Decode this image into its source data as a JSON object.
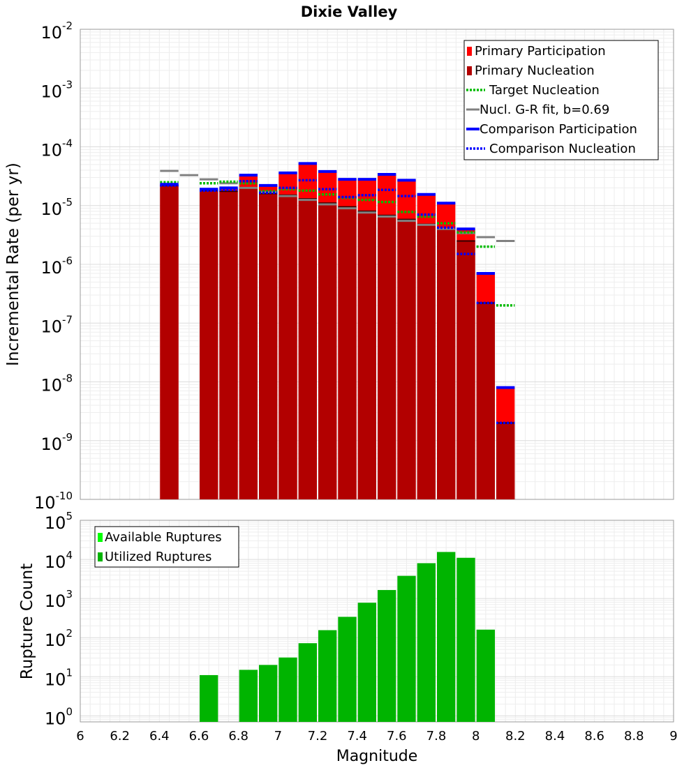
{
  "chart_data": [
    {
      "type": "bar",
      "title": "Dixie Valley",
      "xlabel": "",
      "ylabel": "Incremental Rate (per yr)",
      "yscale": "log",
      "xlim": [
        6,
        9
      ],
      "ylim": [
        1e-10,
        0.01
      ],
      "y_tick_labels": [
        {
          "base": "10",
          "exp": "-10",
          "value": 1e-10
        },
        {
          "base": "10",
          "exp": "-9",
          "value": 1e-09
        },
        {
          "base": "10",
          "exp": "-8",
          "value": 1e-08
        },
        {
          "base": "10",
          "exp": "-7",
          "value": 1e-07
        },
        {
          "base": "10",
          "exp": "-6",
          "value": 1e-06
        },
        {
          "base": "10",
          "exp": "-5",
          "value": 1e-05
        },
        {
          "base": "10",
          "exp": "-4",
          "value": 0.0001
        },
        {
          "base": "10",
          "exp": "-3",
          "value": 0.001
        },
        {
          "base": "10",
          "exp": "-2",
          "value": 0.01
        }
      ],
      "grid": true,
      "legend_position": "top-right",
      "legend": [
        "Primary Participation",
        "Primary Nucleation",
        "Target Nucleation",
        "Nucl. G-R fit, b=0.69",
        "Comparison Participation",
        "Comparison Nucleation"
      ],
      "colors": {
        "primary_participation": "#ff0000",
        "primary_nucleation": "#b20000",
        "target_nucleation": "#00bb00",
        "gr_fit": "#808080",
        "comparison_participation": "#0000ff",
        "comparison_nucleation": "#0000ff",
        "nucleation_marker": "#330000"
      },
      "bin_width": 0.1,
      "series": [
        {
          "name": "Primary Participation",
          "x": [
            6.45,
            6.65,
            6.75,
            6.85,
            6.95,
            7.05,
            7.15,
            7.25,
            7.35,
            7.45,
            7.55,
            7.65,
            7.75,
            7.85,
            7.95,
            8.05,
            8.15
          ],
          "values": [
            2.3e-05,
            1.9e-05,
            2e-05,
            3.3e-05,
            2.2e-05,
            3.6e-05,
            5.2e-05,
            3.8e-05,
            2.8e-05,
            2.8e-05,
            3.4e-05,
            2.7e-05,
            1.55e-05,
            1.1e-05,
            4e-06,
            7e-07,
            8e-09
          ]
        },
        {
          "name": "Primary Nucleation",
          "x": [
            6.45,
            6.65,
            6.75,
            6.85,
            6.95,
            7.05,
            7.15,
            7.25,
            7.35,
            7.45,
            7.55,
            7.65,
            7.75,
            7.85,
            7.95,
            8.05,
            8.15
          ],
          "values": [
            2.2e-05,
            1.8e-05,
            1.75e-05,
            2e-05,
            1.6e-05,
            1.5e-05,
            1.3e-05,
            1.1e-05,
            9.5e-06,
            8e-06,
            6.8e-06,
            5.8e-06,
            4.8e-06,
            4e-06,
            2.5e-06,
            2.2e-07,
            2e-09
          ]
        },
        {
          "name": "Target Nucleation",
          "x": [
            6.45,
            6.65,
            6.75,
            6.85,
            6.95,
            7.05,
            7.15,
            7.25,
            7.35,
            7.45,
            7.55,
            7.65,
            7.75,
            7.85,
            7.95,
            8.05,
            8.15
          ],
          "values": [
            2.5e-05,
            2.4e-05,
            2.55e-05,
            2.4e-05,
            1.75e-05,
            1.9e-05,
            1.8e-05,
            1.55e-05,
            1.35e-05,
            1.25e-05,
            1.15e-05,
            7.8e-06,
            6.5e-06,
            5e-06,
            3.5e-06,
            2e-06,
            2e-07
          ]
        },
        {
          "name": "Nucl. G-R fit, b=0.69",
          "x": [
            6.45,
            6.55,
            6.65,
            6.75,
            6.85,
            6.95,
            7.05,
            7.15,
            7.25,
            7.35,
            7.45,
            7.55,
            7.65,
            7.75,
            7.85,
            7.95,
            8.05,
            8.15
          ],
          "values": [
            3.9e-05,
            3.3e-05,
            2.8e-05,
            2.4e-05,
            2e-05,
            1.7e-05,
            1.45e-05,
            1.25e-05,
            1.05e-05,
            9e-06,
            7.6e-06,
            6.5e-06,
            5.5e-06,
            4.7e-06,
            4e-06,
            3.4e-06,
            2.9e-06,
            2.5e-06
          ]
        },
        {
          "name": "Comparison Participation",
          "x": [
            6.45,
            6.65,
            6.75,
            6.85,
            6.95,
            7.05,
            7.15,
            7.25,
            7.35,
            7.45,
            7.55,
            7.65,
            7.75,
            7.85,
            7.95,
            8.05,
            8.15
          ],
          "values": [
            2.3e-05,
            1.9e-05,
            2e-05,
            3.3e-05,
            2.2e-05,
            3.6e-05,
            5.2e-05,
            3.8e-05,
            2.8e-05,
            2.8e-05,
            3.4e-05,
            2.7e-05,
            1.55e-05,
            1.1e-05,
            4e-06,
            7e-07,
            8e-09
          ]
        },
        {
          "name": "Comparison Nucleation",
          "x": [
            6.45,
            6.65,
            6.75,
            6.85,
            6.95,
            7.05,
            7.15,
            7.25,
            7.35,
            7.45,
            7.55,
            7.65,
            7.75,
            7.85,
            7.95,
            8.05,
            8.15
          ],
          "values": [
            2.2e-05,
            1.8e-05,
            1.85e-05,
            2.6e-05,
            1.65e-05,
            2e-05,
            2.7e-05,
            1.9e-05,
            1.4e-05,
            1.5e-05,
            1.85e-05,
            1.45e-05,
            7e-06,
            4.2e-06,
            1.5e-06,
            2.2e-07,
            2e-09
          ]
        }
      ]
    },
    {
      "type": "bar",
      "title": "",
      "xlabel": "Magnitude",
      "ylabel": "Rupture Count",
      "yscale": "log",
      "xlim": [
        6,
        9
      ],
      "ylim": [
        0.7,
        100000.0
      ],
      "x_ticks": [
        "6",
        "6.2",
        "6.4",
        "6.6",
        "6.8",
        "7",
        "7.2",
        "7.4",
        "7.6",
        "7.8",
        "8",
        "8.2",
        "8.4",
        "8.6",
        "8.8",
        "9"
      ],
      "y_tick_labels": [
        {
          "base": "10",
          "exp": "0",
          "value": 1
        },
        {
          "base": "10",
          "exp": "1",
          "value": 10
        },
        {
          "base": "10",
          "exp": "2",
          "value": 100
        },
        {
          "base": "10",
          "exp": "3",
          "value": 1000
        },
        {
          "base": "10",
          "exp": "4",
          "value": 10000
        },
        {
          "base": "10",
          "exp": "5",
          "value": 100000
        }
      ],
      "grid": true,
      "legend_position": "top-left",
      "legend": [
        "Available Ruptures",
        "Utilized Ruptures"
      ],
      "colors": {
        "available": "#00ff00",
        "utilized": "#00b400"
      },
      "bin_width": 0.1,
      "series": [
        {
          "name": "Utilized Ruptures",
          "x": [
            6.65,
            6.85,
            6.95,
            7.05,
            7.15,
            7.25,
            7.35,
            7.45,
            7.55,
            7.65,
            7.75,
            7.85,
            7.95,
            8.05
          ],
          "values": [
            11,
            15,
            20,
            31,
            72,
            155,
            340,
            780,
            1650,
            3800,
            8000,
            15500,
            11000,
            160
          ]
        }
      ]
    }
  ]
}
